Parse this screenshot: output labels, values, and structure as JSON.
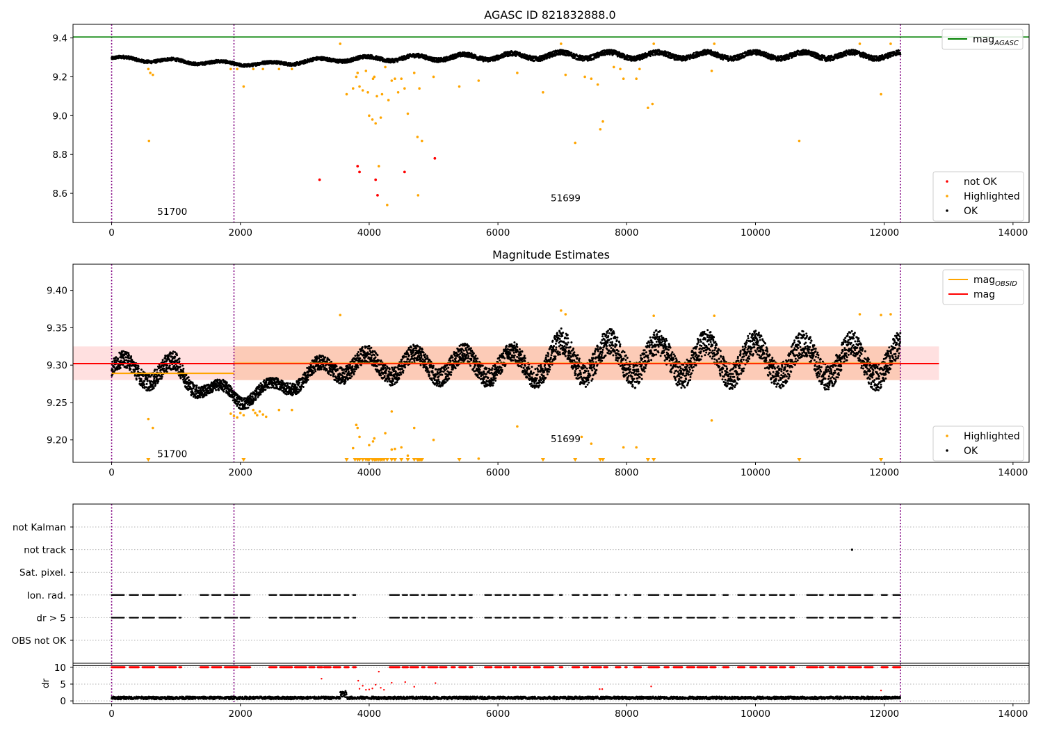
{
  "figure": {
    "title": "AGASC ID 821832888.0",
    "colors": {
      "ok": "#000000",
      "highlighted": "#ffa500",
      "not_ok": "#ff0000",
      "agasc_line": "#008000",
      "mag_line": "#ff0000",
      "mag_obsid_line": "#ffa500",
      "band_fill": "#ffcccc",
      "band_inner": "#f5a36b",
      "obs_boundary": "#800080"
    }
  },
  "chart_data": [
    {
      "type": "scatter",
      "name": "top",
      "title": "AGASC ID 821832888.0",
      "xlim": [
        -600,
        14250
      ],
      "ylim": [
        8.45,
        9.47
      ],
      "xticks": [
        0,
        2000,
        4000,
        6000,
        8000,
        10000,
        12000,
        14000
      ],
      "yticks": [
        8.6,
        8.8,
        9.0,
        9.2,
        9.4
      ],
      "ytick_labels": [
        "8.6",
        "8.8",
        "9.0",
        "9.2",
        "9.4"
      ],
      "hline": {
        "label": "mag",
        "label_sub": "AGASC",
        "y": 9.405
      },
      "obs_boundaries": [
        0,
        1900,
        12250
      ],
      "obs_labels": [
        {
          "text": "51700",
          "x": 710,
          "y": 8.49
        },
        {
          "text": "51699",
          "x": 6820,
          "y": 8.56
        }
      ],
      "ok_band": {
        "x_start": 0,
        "x_end": 12250,
        "segments": [
          {
            "x": 0,
            "y": 9.295,
            "amp": 0.012
          },
          {
            "x": 1700,
            "y": 9.27,
            "amp": 0.012
          },
          {
            "x": 2400,
            "y": 9.265,
            "amp": 0.012
          },
          {
            "x": 3500,
            "y": 9.29,
            "amp": 0.014
          },
          {
            "x": 7000,
            "y": 9.31,
            "amp": 0.02
          },
          {
            "x": 12250,
            "y": 9.31,
            "amp": 0.02
          }
        ]
      },
      "highlighted": [
        [
          570,
          9.24
        ],
        [
          600,
          9.22
        ],
        [
          640,
          9.21
        ],
        [
          580,
          8.87
        ],
        [
          1850,
          9.24
        ],
        [
          1950,
          9.24
        ],
        [
          2050,
          9.15
        ],
        [
          2200,
          9.24
        ],
        [
          2350,
          9.24
        ],
        [
          2600,
          9.24
        ],
        [
          2800,
          9.24
        ],
        [
          3550,
          9.37
        ],
        [
          3650,
          9.11
        ],
        [
          3750,
          9.14
        ],
        [
          3800,
          9.2
        ],
        [
          3820,
          9.22
        ],
        [
          3850,
          9.15
        ],
        [
          3900,
          9.13
        ],
        [
          3950,
          9.23
        ],
        [
          3980,
          9.12
        ],
        [
          4000,
          9.0
        ],
        [
          4050,
          8.98
        ],
        [
          4060,
          9.19
        ],
        [
          4080,
          9.2
        ],
        [
          4100,
          8.96
        ],
        [
          4120,
          9.1
        ],
        [
          4150,
          8.74
        ],
        [
          4180,
          8.99
        ],
        [
          4200,
          9.11
        ],
        [
          4250,
          9.25
        ],
        [
          4280,
          8.54
        ],
        [
          4300,
          9.08
        ],
        [
          4350,
          9.18
        ],
        [
          4400,
          9.19
        ],
        [
          4450,
          9.12
        ],
        [
          4500,
          9.19
        ],
        [
          4550,
          9.14
        ],
        [
          4600,
          9.01
        ],
        [
          4700,
          9.22
        ],
        [
          4750,
          8.89
        ],
        [
          4760,
          8.59
        ],
        [
          4780,
          9.14
        ],
        [
          4820,
          8.87
        ],
        [
          5000,
          9.2
        ],
        [
          5400,
          9.15
        ],
        [
          5700,
          9.18
        ],
        [
          6300,
          9.22
        ],
        [
          6700,
          9.12
        ],
        [
          6980,
          9.37
        ],
        [
          7050,
          9.21
        ],
        [
          7200,
          8.86
        ],
        [
          7350,
          9.2
        ],
        [
          7450,
          9.19
        ],
        [
          7550,
          9.16
        ],
        [
          7590,
          8.93
        ],
        [
          7630,
          8.97
        ],
        [
          7800,
          9.25
        ],
        [
          7900,
          9.24
        ],
        [
          7950,
          9.19
        ],
        [
          8150,
          9.19
        ],
        [
          8200,
          9.24
        ],
        [
          8330,
          9.04
        ],
        [
          8400,
          9.06
        ],
        [
          8420,
          9.37
        ],
        [
          9320,
          9.23
        ],
        [
          9360,
          9.37
        ],
        [
          10680,
          8.87
        ],
        [
          11620,
          9.37
        ],
        [
          11950,
          9.11
        ],
        [
          12100,
          9.37
        ]
      ],
      "not_ok": [
        [
          3230,
          8.67
        ],
        [
          3820,
          8.74
        ],
        [
          3850,
          8.71
        ],
        [
          4100,
          8.67
        ],
        [
          4130,
          8.59
        ],
        [
          4550,
          8.71
        ],
        [
          5020,
          8.78
        ]
      ],
      "legends": [
        {
          "items": [
            {
              "label": "not OK",
              "kind": "dot",
              "color": "not_ok"
            },
            {
              "label": "Highlighted",
              "kind": "dot",
              "color": "highlighted"
            },
            {
              "label": "OK",
              "kind": "dot",
              "color": "ok"
            }
          ],
          "loc": "lower-right"
        },
        {
          "items": [
            {
              "label": "mag",
              "sub": "AGASC",
              "kind": "line",
              "color": "agasc_line"
            }
          ],
          "loc": "upper-right"
        }
      ]
    },
    {
      "type": "scatter",
      "name": "middle",
      "title": "Magnitude Estimates",
      "xlim": [
        -600,
        14250
      ],
      "ylim": [
        9.17,
        9.435
      ],
      "xticks": [
        0,
        2000,
        4000,
        6000,
        8000,
        10000,
        12000,
        14000
      ],
      "yticks": [
        9.2,
        9.25,
        9.3,
        9.35,
        9.4
      ],
      "ytick_labels": [
        "9.20",
        "9.25",
        "9.30",
        "9.35",
        "9.40"
      ],
      "mag_line": {
        "label": "mag",
        "y": 9.302,
        "x_start": -600,
        "x_end": 12850
      },
      "mag_obsid_segments": [
        {
          "label": "mag",
          "label_sub": "OBSID",
          "x_start": 0,
          "x_end": 1900,
          "y": 9.289
        },
        {
          "x_start": 1900,
          "x_end": 12250,
          "y": 9.303
        }
      ],
      "band": {
        "x_start": -600,
        "x_end": 12850,
        "y_low": 9.28,
        "y_high": 9.325
      },
      "inner_band": {
        "x_start": 1900,
        "x_end": 12250,
        "y_low": 9.28,
        "y_high": 9.325
      },
      "obs_boundaries": [
        0,
        1900,
        12250
      ],
      "obs_labels": [
        {
          "text": "51700",
          "x": 710,
          "y": 9.177
        },
        {
          "text": "51699",
          "x": 6820,
          "y": 9.197
        }
      ],
      "ok_band": {
        "x_start": 0,
        "x_end": 12250,
        "segments": [
          {
            "x": 0,
            "y": 9.295,
            "amp": 0.015
          },
          {
            "x": 1000,
            "y": 9.29,
            "amp": 0.018
          },
          {
            "x": 1500,
            "y": 9.268,
            "amp": 0.01
          },
          {
            "x": 2000,
            "y": 9.258,
            "amp": 0.012
          },
          {
            "x": 2500,
            "y": 9.268,
            "amp": 0.01
          },
          {
            "x": 3500,
            "y": 9.3,
            "amp": 0.016
          },
          {
            "x": 6500,
            "y": 9.3,
            "amp": 0.02
          },
          {
            "x": 7000,
            "y": 9.31,
            "amp": 0.025
          },
          {
            "x": 12250,
            "y": 9.305,
            "amp": 0.025
          }
        ]
      },
      "highlighted": [
        [
          3550,
          9.367
        ],
        [
          6980,
          9.373
        ],
        [
          7050,
          9.368
        ],
        [
          8420,
          9.366
        ],
        [
          9360,
          9.366
        ],
        [
          11620,
          9.368
        ],
        [
          11950,
          9.367
        ],
        [
          12100,
          9.368
        ],
        [
          1850,
          9.235
        ],
        [
          1900,
          9.232
        ],
        [
          1950,
          9.23
        ],
        [
          2000,
          9.236
        ],
        [
          2050,
          9.233
        ],
        [
          2200,
          9.24
        ],
        [
          2230,
          9.236
        ],
        [
          2260,
          9.233
        ],
        [
          2300,
          9.238
        ],
        [
          2350,
          9.234
        ],
        [
          2400,
          9.231
        ],
        [
          2600,
          9.24
        ],
        [
          2800,
          9.24
        ],
        [
          570,
          9.228
        ],
        [
          640,
          9.216
        ],
        [
          3800,
          9.22
        ],
        [
          3820,
          9.216
        ],
        [
          3750,
          9.189
        ],
        [
          3850,
          9.204
        ],
        [
          4000,
          9.193
        ],
        [
          4060,
          9.198
        ],
        [
          4080,
          9.202
        ],
        [
          4250,
          9.209
        ],
        [
          4350,
          9.187
        ],
        [
          4400,
          9.188
        ],
        [
          4500,
          9.19
        ],
        [
          4600,
          9.179
        ],
        [
          4700,
          9.216
        ],
        [
          5000,
          9.2
        ],
        [
          5700,
          9.175
        ],
        [
          6300,
          9.218
        ],
        [
          7300,
          9.204
        ],
        [
          7450,
          9.195
        ],
        [
          7950,
          9.19
        ],
        [
          8150,
          9.19
        ],
        [
          9320,
          9.226
        ],
        [
          4350,
          9.238
        ]
      ],
      "highlighted_floor": [
        570,
        2050,
        3650,
        3780,
        3820,
        3850,
        3900,
        3950,
        3980,
        4000,
        4050,
        4080,
        4100,
        4120,
        4150,
        4180,
        4200,
        4230,
        4280,
        4350,
        4400,
        4500,
        4600,
        4700,
        4750,
        4760,
        4780,
        4800,
        4820,
        5400,
        6700,
        7200,
        7590,
        7630,
        8330,
        8420,
        10680,
        11950
      ],
      "legends": [
        {
          "items": [
            {
              "label": "Highlighted",
              "kind": "dot",
              "color": "highlighted"
            },
            {
              "label": "OK",
              "kind": "dot",
              "color": "ok"
            }
          ],
          "loc": "lower-right"
        },
        {
          "items": [
            {
              "label": "mag",
              "sub": "OBSID",
              "kind": "line",
              "color": "mag_obsid_line"
            },
            {
              "label": "mag",
              "kind": "line",
              "color": "mag_line"
            }
          ],
          "loc": "upper-right"
        }
      ]
    },
    {
      "type": "scatter",
      "name": "flags",
      "xlim": [
        -600,
        14250
      ],
      "categories": [
        "not Kalman",
        "not track",
        "Sat. pixel.",
        "Ion. rad.",
        "dr > 5",
        "OBS not OK"
      ],
      "obs_boundaries": [
        0,
        1900,
        12250
      ],
      "not_track_points": [
        11500
      ],
      "flag_segments": [
        [
          0,
          200
        ],
        [
          280,
          420
        ],
        [
          480,
          660
        ],
        [
          740,
          1000
        ],
        [
          1050,
          1080
        ],
        [
          1380,
          1500
        ],
        [
          1560,
          1700
        ],
        [
          1760,
          1960
        ],
        [
          2000,
          2150
        ],
        [
          2450,
          2560
        ],
        [
          2620,
          2800
        ],
        [
          2850,
          3020
        ],
        [
          3070,
          3150
        ],
        [
          3200,
          3270
        ],
        [
          3300,
          3400
        ],
        [
          3450,
          3550
        ],
        [
          3620,
          3680
        ],
        [
          3750,
          3790
        ],
        [
          4320,
          4470
        ],
        [
          4520,
          4600
        ],
        [
          4640,
          4760
        ],
        [
          4820,
          4860
        ],
        [
          4920,
          5060
        ],
        [
          5100,
          5200
        ],
        [
          5280,
          5330
        ],
        [
          5400,
          5500
        ],
        [
          5560,
          5600
        ],
        [
          5800,
          5900
        ],
        [
          5960,
          6050
        ],
        [
          6100,
          6180
        ],
        [
          6230,
          6280
        ],
        [
          6340,
          6500
        ],
        [
          6560,
          6650
        ],
        [
          6720,
          6860
        ],
        [
          6960,
          7000
        ],
        [
          7160,
          7260
        ],
        [
          7330,
          7400
        ],
        [
          7460,
          7600
        ],
        [
          7650,
          7700
        ],
        [
          7830,
          7900
        ],
        [
          7980,
          8000
        ],
        [
          8120,
          8220
        ],
        [
          8340,
          8500
        ],
        [
          8590,
          8650
        ],
        [
          8730,
          8860
        ],
        [
          8940,
          9050
        ],
        [
          9100,
          9250
        ],
        [
          9300,
          9380
        ],
        [
          9500,
          9580
        ],
        [
          9730,
          9830
        ],
        [
          9920,
          10010
        ],
        [
          10080,
          10150
        ],
        [
          10220,
          10330
        ],
        [
          10380,
          10460
        ],
        [
          10540,
          10600
        ],
        [
          10800,
          10960
        ],
        [
          11000,
          11050
        ],
        [
          11150,
          11220
        ],
        [
          11280,
          11380
        ],
        [
          11450,
          11640
        ],
        [
          11700,
          11820
        ],
        [
          11960,
          12050
        ],
        [
          12140,
          12250
        ]
      ]
    },
    {
      "type": "scatter",
      "name": "dr",
      "xlim": [
        -600,
        14250
      ],
      "ylim": [
        -0.8,
        11.2
      ],
      "yticks": [
        0,
        5,
        10
      ],
      "ytick_labels": [
        "0",
        "5",
        "10"
      ],
      "ylabel": "dr",
      "xticks": [
        0,
        2000,
        4000,
        6000,
        8000,
        10000,
        12000,
        14000
      ],
      "obs_boundaries": [
        0,
        1900,
        12250
      ],
      "threshold": 10.5,
      "red_points": [
        [
          3260,
          6.6
        ],
        [
          3830,
          6.0
        ],
        [
          3900,
          4.5
        ],
        [
          3850,
          3.6
        ],
        [
          3950,
          3.3
        ],
        [
          4000,
          3.4
        ],
        [
          4050,
          3.7
        ],
        [
          4100,
          4.8
        ],
        [
          4150,
          8.7
        ],
        [
          4180,
          3.9
        ],
        [
          4230,
          3.3
        ],
        [
          4350,
          5.4
        ],
        [
          4560,
          5.6
        ],
        [
          4700,
          4.2
        ],
        [
          5030,
          5.3
        ],
        [
          7580,
          3.5
        ],
        [
          7620,
          3.5
        ],
        [
          8380,
          4.3
        ],
        [
          11950,
          3.1
        ]
      ]
    }
  ]
}
